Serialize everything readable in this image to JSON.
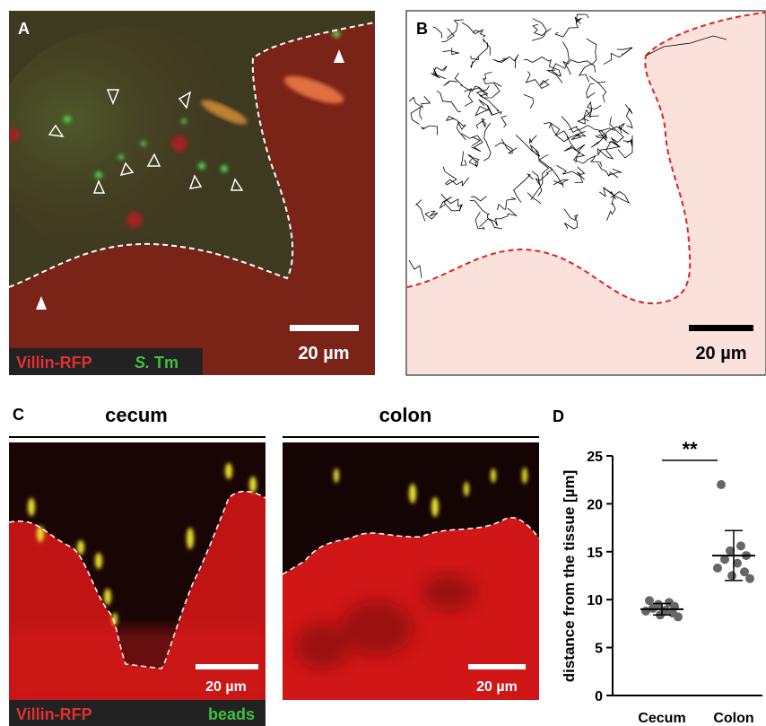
{
  "panels": {
    "A": {
      "label": "A",
      "scale_bar": "20 µm",
      "legend": {
        "tissue": "Villin-RFP",
        "bacteria_genus": "S.",
        "bacteria_species": "Tm"
      }
    },
    "B": {
      "label": "B",
      "scale_bar": "20 µm"
    },
    "C": {
      "label": "C",
      "left_title": "cecum",
      "right_title": "colon",
      "left_scale_bar": "20 µm",
      "right_scale_bar": "20 µm",
      "legend": {
        "tissue": "Villin-RFP",
        "beads": "beads"
      }
    }
  },
  "chart_data": {
    "type": "strip",
    "label": "D",
    "y_label": "distance from the tissue [µm]",
    "categories": [
      "Cecum",
      "Colon"
    ],
    "points": [
      [
        9.9,
        9.7,
        9.5,
        9.3,
        9.1,
        8.9,
        8.8,
        8.6,
        8.4,
        8.2
      ],
      [
        22.0,
        15.6,
        15.1,
        14.6,
        14.2,
        13.8,
        13.3,
        12.9,
        12.5,
        12.2
      ]
    ],
    "means": [
      9.0,
      14.6
    ],
    "sd": [
      0.6,
      2.6
    ],
    "color": "#666666",
    "annotation": "**",
    "ylim": [
      0,
      25
    ],
    "yticks": [
      0,
      5,
      10,
      15,
      20,
      25
    ]
  }
}
